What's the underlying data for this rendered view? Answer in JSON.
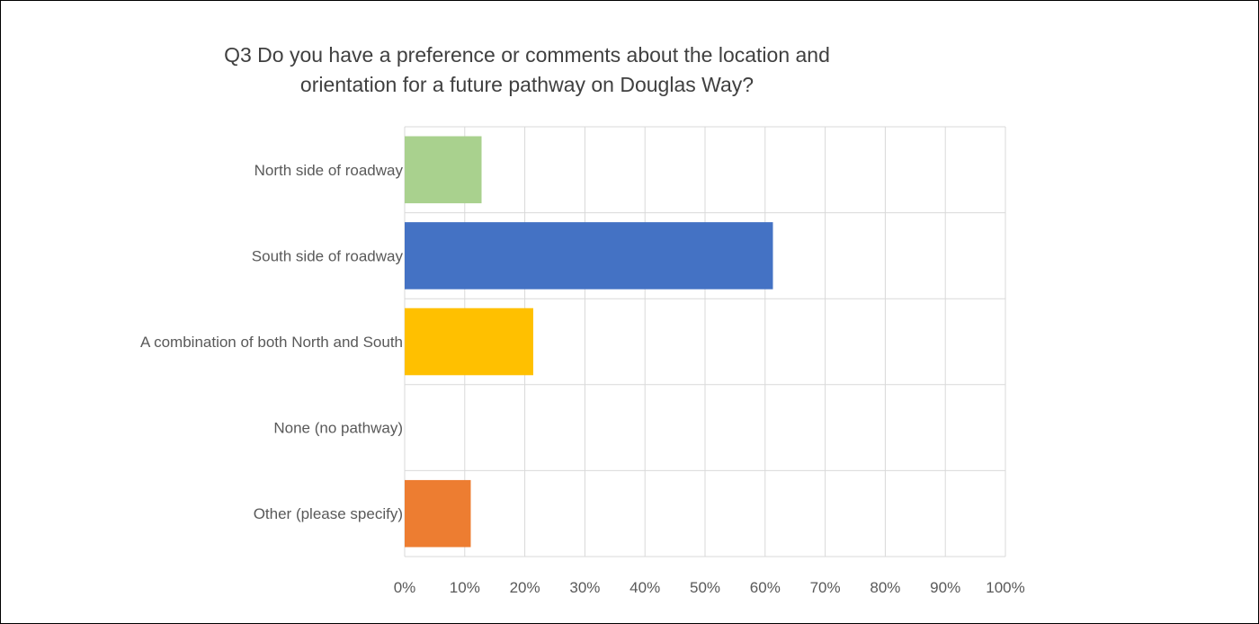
{
  "chart_data": {
    "type": "bar",
    "orientation": "horizontal",
    "title_lines": [
      "Q3 Do you have a preference or comments about the location and",
      "orientation for a future pathway on Douglas Way?"
    ],
    "categories": [
      "North side of roadway",
      "South side of roadway",
      "A combination of both North and South",
      "None (no pathway)",
      "Other (please specify)"
    ],
    "values": [
      12.8,
      61.3,
      21.4,
      0,
      11.0
    ],
    "value_unit": "%",
    "colors": [
      "#a9d18e",
      "#4472c4",
      "#ffc000",
      "#a5a5a5",
      "#ed7d31"
    ],
    "xlim": [
      0,
      100
    ],
    "xticks": [
      "0%",
      "10%",
      "20%",
      "30%",
      "40%",
      "50%",
      "60%",
      "70%",
      "80%",
      "90%",
      "100%"
    ],
    "grid": true,
    "gridline_color": "#d9d9d9"
  }
}
